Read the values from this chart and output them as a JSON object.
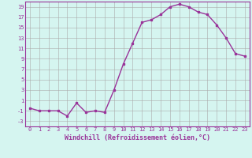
{
  "x": [
    0,
    1,
    2,
    3,
    4,
    5,
    6,
    7,
    8,
    9,
    10,
    11,
    12,
    13,
    14,
    15,
    16,
    17,
    18,
    19,
    20,
    21,
    22,
    23
  ],
  "y": [
    -0.5,
    -1.0,
    -1.0,
    -1.0,
    -2.0,
    0.5,
    -1.3,
    -1.0,
    -1.3,
    3.0,
    8.0,
    12.0,
    16.0,
    16.5,
    17.5,
    19.0,
    19.5,
    19.0,
    18.0,
    17.5,
    15.5,
    13.0,
    10.0,
    9.5
  ],
  "line_color": "#993399",
  "marker": "s",
  "marker_size": 1.8,
  "xlabel": "Windchill (Refroidissement éolien,°C)",
  "xlabel_fontsize": 6.0,
  "xticks": [
    0,
    1,
    2,
    3,
    4,
    5,
    6,
    7,
    8,
    9,
    10,
    11,
    12,
    13,
    14,
    15,
    16,
    17,
    18,
    19,
    20,
    21,
    22,
    23
  ],
  "yticks": [
    -3,
    -1,
    1,
    3,
    5,
    7,
    9,
    11,
    13,
    15,
    17,
    19
  ],
  "ylim": [
    -4,
    20
  ],
  "xlim": [
    -0.5,
    23.5
  ],
  "bg_color": "#d5f5f0",
  "grid_color": "#aaaaaa",
  "line_width": 1.0,
  "tick_fontsize": 5.0
}
